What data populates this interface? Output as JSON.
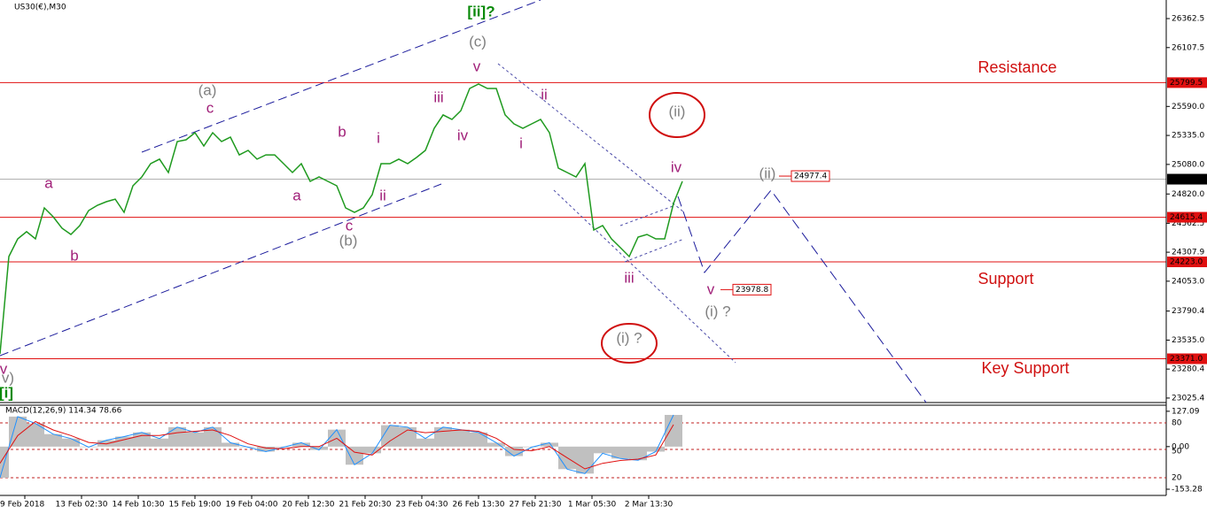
{
  "chart_data": {
    "type": "line",
    "title": "US30(€),M30",
    "color": "#1f9a1f",
    "values": [
      23414,
      24270,
      24425,
      24488,
      24425,
      24698,
      24620,
      24519,
      24464,
      24542,
      24674,
      24721,
      24752,
      24775,
      24659,
      24892,
      24970,
      25087,
      25126,
      25009,
      25281,
      25297,
      25359,
      25242,
      25359,
      25281,
      25320,
      25164,
      25203,
      25126,
      25164,
      25164,
      25087,
      25009,
      25087,
      24931,
      24970,
      24931,
      24892,
      24698,
      24659,
      24698,
      24814,
      25087,
      25087,
      25126,
      25087,
      25141,
      25203,
      25398,
      25515,
      25476,
      25553,
      25748,
      25787,
      25748,
      25748,
      25515,
      25437,
      25398,
      25437,
      25476,
      25359,
      25048,
      25009,
      24970,
      25087,
      24503,
      24542,
      24425,
      24348,
      24270,
      24441,
      24464,
      24425,
      24425,
      24737,
      24931
    ],
    "ylim": [
      22986,
      26526
    ],
    "yticks": [
      26362.5,
      26107.5,
      {
        "value": 25590,
        "label": "25590.0"
      },
      {
        "value": 25335,
        "label": "25335.0"
      },
      {
        "value": 25080,
        "label": "25080.0"
      },
      {
        "value": 24820,
        "label": "24820.0"
      },
      24562.5,
      24307.9,
      {
        "value": 24053,
        "label": "24053.0"
      },
      23790.4,
      {
        "value": 23535,
        "label": "23535.0"
      },
      23280.4,
      23025.4
    ],
    "levels": [
      25799.5,
      24615.4,
      {
        "value": 24223,
        "label": "24223.0"
      },
      {
        "value": 23371,
        "label": "23371.0"
      }
    ],
    "current_price": 24950.2,
    "targets": [
      24977.4,
      23978.8
    ],
    "projection": {
      "x": [
        76.5,
        79.5,
        87,
        104.5
      ],
      "values": [
        24799,
        24130,
        24853,
        22986
      ]
    },
    "xtick_labels": [
      "9 Feb 2018",
      "13 Feb 02:30",
      "14 Feb 10:30",
      "15 Feb 19:00",
      "19 Feb 04:00",
      "20 Feb 12:30",
      "21 Feb 20:30",
      "23 Feb 04:30",
      "26 Feb 13:30",
      "27 Feb 21:30",
      "1 Mar 05:30",
      "2 Mar 13:30"
    ],
    "annotations": [
      "[ii]?",
      "(c)",
      "v",
      "(a)",
      "c",
      "iii",
      "ii",
      "iv",
      "i",
      "b",
      "i",
      "a",
      "ii",
      "a",
      "c",
      "(b)",
      "b",
      "iv",
      "(ii)",
      "(ii)",
      "iii",
      "v",
      "(i) ?",
      "(i) ?",
      "Resistance",
      "Support",
      "Key Support",
      "v",
      "v)",
      "[i]"
    ],
    "macd": {
      "title": "MACD(12,26,9) 114.34 78.66",
      "values": [
        -112,
        108,
        83,
        45,
        29,
        -2,
        23,
        36,
        51,
        29,
        70,
        51,
        70,
        14,
        -2,
        -18,
        -2,
        14,
        -12,
        61,
        -65,
        -24,
        77,
        70,
        29,
        70,
        61,
        51,
        14,
        -34,
        -2,
        14,
        -81,
        -97,
        -24,
        -43,
        -49,
        -18,
        114
      ],
      "signal": [
        -60,
        40,
        90,
        60,
        40,
        15,
        10,
        25,
        40,
        40,
        50,
        55,
        60,
        40,
        10,
        -5,
        -8,
        0,
        0,
        30,
        -20,
        -30,
        20,
        60,
        50,
        55,
        60,
        55,
        30,
        -10,
        -15,
        0,
        -40,
        -80,
        -60,
        -50,
        -45,
        -30,
        79
      ],
      "ylim": [
        -166,
        149
      ],
      "yticks": [
        127.09,
        {
          "value": 0,
          "label": "0.00"
        },
        -153.28
      ],
      "level_labels": [
        "80",
        "50",
        "20"
      ]
    }
  }
}
